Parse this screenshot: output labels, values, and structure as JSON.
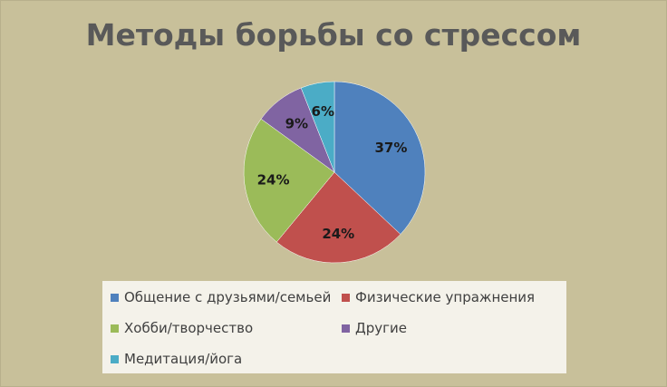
{
  "chart_data": {
    "type": "pie",
    "title": "Методы борьбы со стрессом",
    "categories": [
      "Общение с друзьями/семьей",
      "Физические упражнения",
      "Хобби/творчество",
      "Другие",
      "Медитация/йога"
    ],
    "values": [
      37,
      24,
      24,
      9,
      6
    ],
    "data_labels": [
      "37%",
      "24%",
      "24%",
      "9%",
      "6%"
    ],
    "colors": [
      "#4f81bd",
      "#c0504d",
      "#9bbb59",
      "#8064a2",
      "#4bacc6"
    ],
    "legend_position": "bottom",
    "start_angle_deg": 0,
    "direction": "clockwise"
  }
}
